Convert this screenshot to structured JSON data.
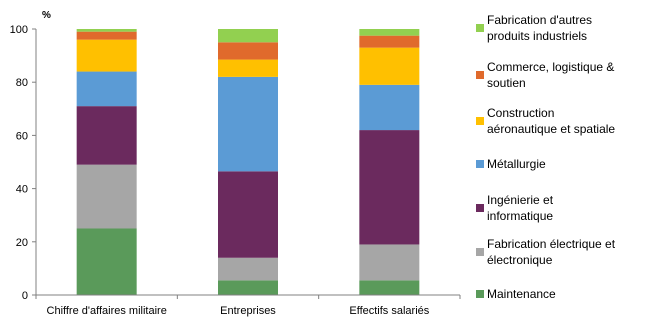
{
  "chart_data": {
    "type": "bar",
    "stacked": true,
    "unit_label": "%",
    "ylim": [
      0,
      100
    ],
    "yticks": [
      0,
      20,
      40,
      60,
      80,
      100
    ],
    "grid": false,
    "legend_position": "right",
    "categories": [
      "Chiffre d'affaires militaire",
      "Entreprises",
      "Effectifs salariés"
    ],
    "series": [
      {
        "name": "Maintenance",
        "legend_lines": [
          "Maintenance"
        ],
        "color": "#5a9a5a",
        "values": [
          25,
          5.5,
          5.5
        ]
      },
      {
        "name": "Fabrication électrique et électronique",
        "legend_lines": [
          "Fabrication électrique et",
          "électronique"
        ],
        "color": "#a6a6a6",
        "values": [
          24,
          8.5,
          13.5
        ]
      },
      {
        "name": "Ingénierie et informatique",
        "legend_lines": [
          "Ingénierie et",
          "informatique"
        ],
        "color": "#6b2a5e",
        "values": [
          22,
          32.5,
          43
        ]
      },
      {
        "name": "Métallurgie",
        "legend_lines": [
          "Métallurgie"
        ],
        "color": "#5b9bd5",
        "values": [
          13,
          35.5,
          17
        ]
      },
      {
        "name": "Construction aéronautique et spatiale",
        "legend_lines": [
          "Construction",
          "aéronautique et spatiale"
        ],
        "color": "#ffc000",
        "values": [
          12,
          6.5,
          14
        ]
      },
      {
        "name": "Commerce, logistique & soutien",
        "legend_lines": [
          "Commerce, logistique &",
          "soutien"
        ],
        "color": "#e06a2c",
        "values": [
          3,
          6.5,
          4.5
        ]
      },
      {
        "name": "Fabrication d'autres produits industriels",
        "legend_lines": [
          "Fabrication d'autres",
          "produits industriels"
        ],
        "color": "#92d050",
        "values": [
          1,
          5,
          2.5
        ]
      }
    ]
  }
}
